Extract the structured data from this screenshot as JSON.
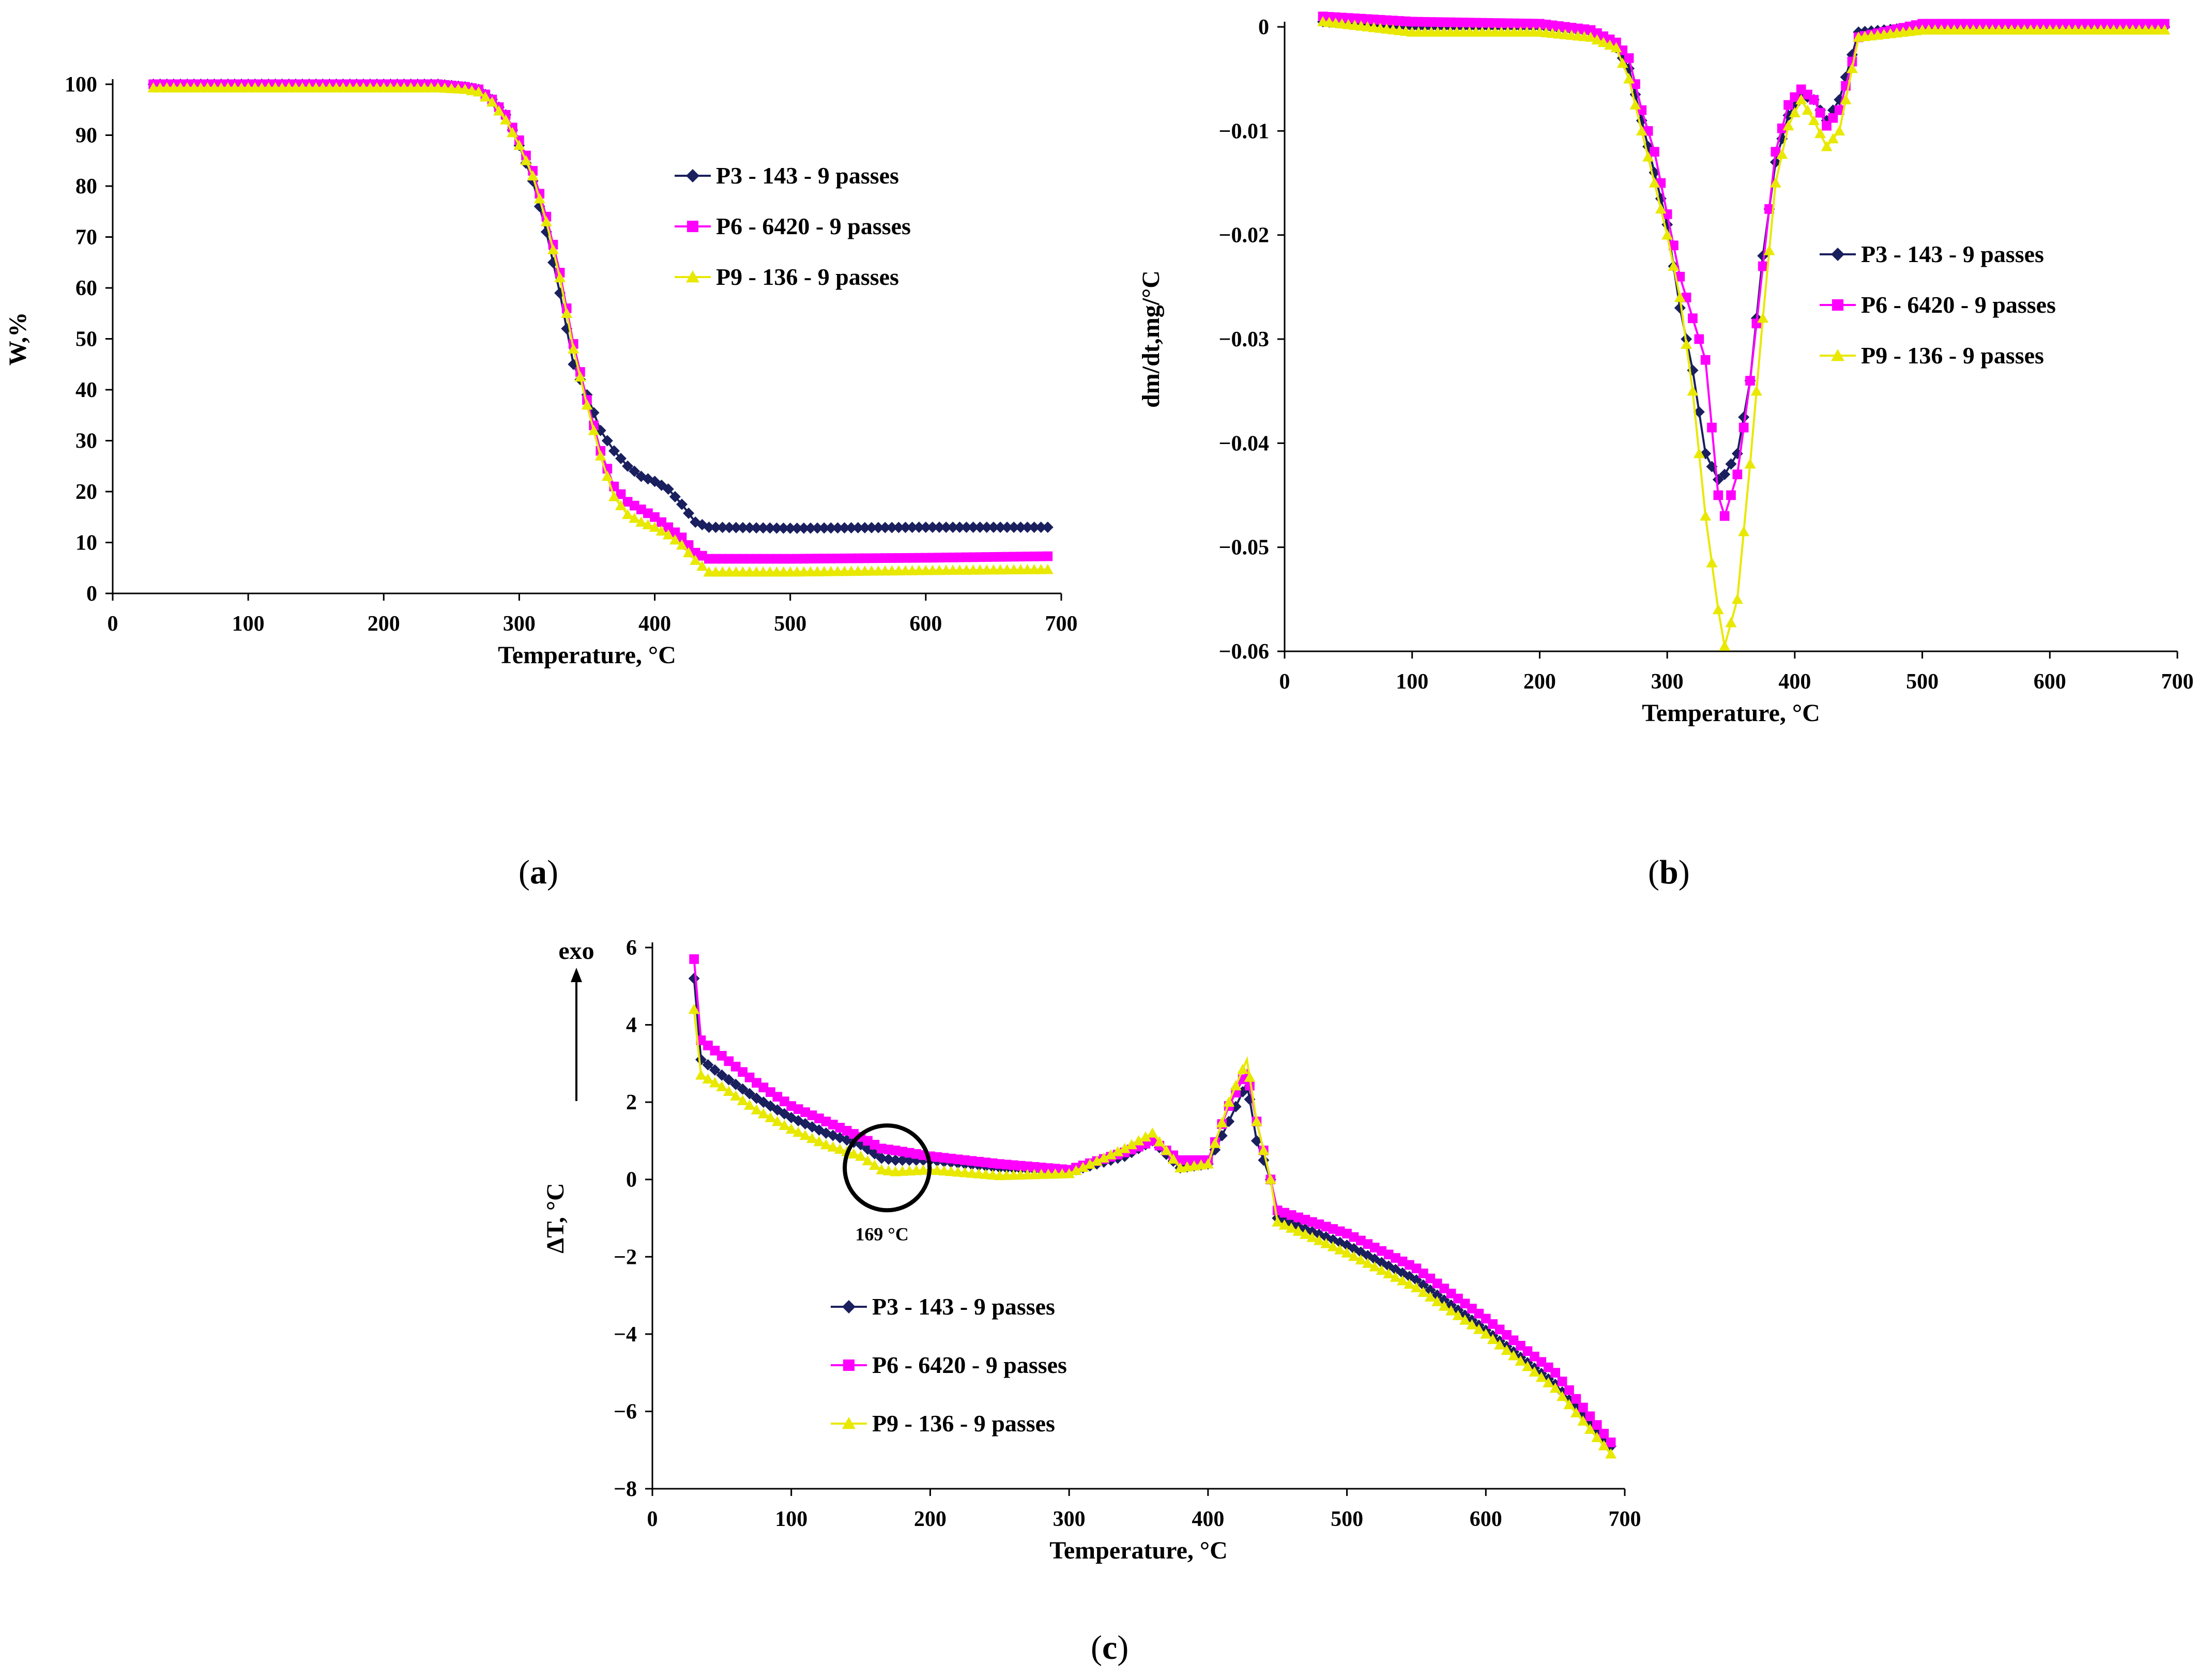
{
  "figure": {
    "captions": [
      {
        "open": "(",
        "letter": "a",
        "close": ")"
      },
      {
        "open": "(",
        "letter": "b",
        "close": ")"
      },
      {
        "open": "(",
        "letter": "c",
        "close": ")"
      }
    ]
  },
  "colors": {
    "P3": "#1a1f5e",
    "P6": "#ff00ff",
    "P9": "#ffff00"
  },
  "chart_data": [
    {
      "type": "line",
      "panel": "a",
      "title": "",
      "xlabel": "Temperature, °C",
      "ylabel": "W,%",
      "xlim": [
        0,
        700
      ],
      "ylim": [
        0,
        100
      ],
      "xticks": [
        0,
        100,
        200,
        300,
        400,
        500,
        600,
        700
      ],
      "yticks": [
        0,
        10,
        20,
        30,
        40,
        50,
        60,
        70,
        80,
        90,
        100
      ],
      "ytick_labels": [
        "0",
        "10",
        "20",
        "30",
        "40",
        "50",
        "60",
        "70",
        "80",
        "90",
        "100"
      ],
      "legend_position": "upper-right",
      "series": [
        {
          "name": "P3 - 143 - 9 passes",
          "marker": "diamond",
          "x": [
            30,
            100,
            200,
            240,
            260,
            270,
            280,
            290,
            300,
            310,
            320,
            330,
            340,
            350,
            360,
            370,
            380,
            390,
            400,
            410,
            420,
            430,
            440,
            500,
            600,
            690
          ],
          "y": [
            100,
            100,
            100,
            100,
            99.5,
            99,
            97,
            94,
            88,
            81,
            71,
            59,
            45,
            39,
            32,
            28,
            25,
            23,
            22,
            20.5,
            17.5,
            14,
            13,
            12.8,
            13,
            13
          ]
        },
        {
          "name": "P6 - 6420 - 9 passes",
          "marker": "square",
          "x": [
            30,
            100,
            200,
            240,
            260,
            270,
            280,
            290,
            300,
            310,
            320,
            330,
            340,
            350,
            360,
            370,
            380,
            390,
            400,
            410,
            420,
            430,
            440,
            500,
            600,
            690
          ],
          "y": [
            100,
            100,
            100,
            100,
            99.5,
            99,
            97,
            94,
            89,
            83,
            74,
            63,
            49,
            38,
            28,
            21,
            18,
            16.5,
            15,
            13,
            11,
            8,
            6.8,
            6.8,
            7,
            7.3
          ]
        },
        {
          "name": "P9 - 136 - 9 passes",
          "marker": "triangle",
          "x": [
            30,
            100,
            200,
            240,
            260,
            270,
            280,
            290,
            300,
            310,
            320,
            330,
            340,
            350,
            360,
            370,
            380,
            390,
            400,
            410,
            420,
            430,
            440,
            500,
            600,
            690
          ],
          "y": [
            99.3,
            99.3,
            99.3,
            99.3,
            99,
            98.5,
            96.5,
            93,
            88,
            82,
            73,
            62,
            48,
            37,
            27,
            19,
            15.5,
            14,
            13,
            11.5,
            9.5,
            6.5,
            4.2,
            4.2,
            4.5,
            4.7
          ]
        }
      ]
    },
    {
      "type": "line",
      "panel": "b",
      "title": "",
      "xlabel": "Temperature, °C",
      "ylabel": "dm/dt,mg/°C",
      "xlim": [
        0,
        700
      ],
      "ylim": [
        -0.06,
        0
      ],
      "xticks": [
        0,
        100,
        200,
        300,
        400,
        500,
        600,
        700
      ],
      "yticks": [
        0,
        -0.01,
        -0.02,
        -0.03,
        -0.04,
        -0.05,
        -0.06
      ],
      "ytick_labels": [
        "0",
        "−0.01",
        "−0.02",
        "−0.03",
        "−0.04",
        "−0.05",
        "−0.06"
      ],
      "legend_position": "right",
      "series": [
        {
          "name": "P3 - 143 - 9 passes",
          "marker": "diamond",
          "x": [
            30,
            100,
            200,
            240,
            260,
            270,
            280,
            290,
            300,
            310,
            320,
            330,
            340,
            345,
            355,
            365,
            375,
            385,
            395,
            405,
            415,
            425,
            435,
            450,
            500,
            600,
            690
          ],
          "y": [
            0.0005,
            0,
            0,
            -0.0005,
            -0.002,
            -0.004,
            -0.009,
            -0.014,
            -0.019,
            -0.027,
            -0.033,
            -0.041,
            -0.0435,
            -0.043,
            -0.041,
            -0.034,
            -0.022,
            -0.013,
            -0.0085,
            -0.0065,
            -0.007,
            -0.009,
            -0.007,
            -0.0005,
            0,
            0,
            0
          ]
        },
        {
          "name": "P6 - 6420 - 9 passes",
          "marker": "square",
          "x": [
            30,
            100,
            200,
            240,
            260,
            270,
            280,
            290,
            300,
            310,
            320,
            330,
            340,
            345,
            355,
            365,
            375,
            385,
            395,
            405,
            415,
            425,
            435,
            450,
            500,
            600,
            690
          ],
          "y": [
            0.001,
            0.0005,
            0.0003,
            -0.0003,
            -0.0015,
            -0.003,
            -0.008,
            -0.012,
            -0.018,
            -0.024,
            -0.028,
            -0.032,
            -0.045,
            -0.047,
            -0.043,
            -0.034,
            -0.023,
            -0.012,
            -0.0075,
            -0.006,
            -0.007,
            -0.0095,
            -0.008,
            -0.001,
            0.0003,
            0.0003,
            0.0003
          ]
        },
        {
          "name": "P9 - 136 - 9 passes",
          "marker": "triangle",
          "x": [
            30,
            100,
            200,
            240,
            260,
            270,
            280,
            290,
            300,
            310,
            320,
            330,
            340,
            345,
            355,
            365,
            375,
            385,
            395,
            405,
            415,
            425,
            435,
            450,
            500,
            600,
            690
          ],
          "y": [
            0.0005,
            -0.0005,
            -0.0005,
            -0.001,
            -0.002,
            -0.005,
            -0.01,
            -0.015,
            -0.02,
            -0.026,
            -0.035,
            -0.047,
            -0.056,
            -0.0595,
            -0.055,
            -0.042,
            -0.028,
            -0.015,
            -0.0095,
            -0.007,
            -0.009,
            -0.0115,
            -0.01,
            -0.001,
            -0.0003,
            -0.0003,
            -0.0003
          ]
        }
      ]
    },
    {
      "type": "line",
      "panel": "c",
      "title": "",
      "xlabel": "Temperature, °C",
      "ylabel": "ΔT, °C",
      "xlim": [
        0,
        700
      ],
      "ylim": [
        -8,
        6
      ],
      "xticks": [
        0,
        100,
        200,
        300,
        400,
        500,
        600,
        700
      ],
      "yticks": [
        6,
        4,
        2,
        0,
        -2,
        -4,
        -6,
        -8
      ],
      "ytick_labels": [
        "6",
        "4",
        "2",
        "0",
        "−2",
        "−4",
        "−6",
        "−8"
      ],
      "legend_position": "lower-left",
      "annotations": [
        {
          "text": "169 °C",
          "x": 169,
          "y": 0.3
        },
        {
          "text": "exo"
        }
      ],
      "series": [
        {
          "name": "P3 - 143 - 9 passes",
          "marker": "diamond",
          "x": [
            30,
            35,
            50,
            75,
            100,
            125,
            150,
            165,
            175,
            200,
            250,
            300,
            340,
            360,
            380,
            400,
            415,
            428,
            435,
            445,
            450,
            500,
            550,
            600,
            650,
            690
          ],
          "y": [
            5.2,
            3.1,
            2.7,
            2.1,
            1.6,
            1.2,
            0.9,
            0.55,
            0.5,
            0.5,
            0.3,
            0.2,
            0.6,
            1.0,
            0.3,
            0.4,
            1.5,
            2.5,
            1.0,
            0.0,
            -1.0,
            -1.7,
            -2.6,
            -3.9,
            -5.3,
            -6.9
          ]
        },
        {
          "name": "P6 - 6420 - 9 passes",
          "marker": "square",
          "x": [
            30,
            35,
            50,
            75,
            100,
            125,
            150,
            165,
            175,
            200,
            250,
            300,
            340,
            360,
            380,
            400,
            415,
            428,
            435,
            445,
            450,
            500,
            550,
            600,
            650,
            690
          ],
          "y": [
            5.7,
            3.6,
            3.2,
            2.5,
            1.9,
            1.5,
            1.1,
            0.8,
            0.75,
            0.6,
            0.4,
            0.25,
            0.7,
            1.0,
            0.5,
            0.5,
            1.9,
            2.8,
            1.5,
            0.0,
            -0.8,
            -1.4,
            -2.3,
            -3.6,
            -5.0,
            -6.8
          ]
        },
        {
          "name": "P9 - 136 - 9 passes",
          "marker": "triangle",
          "x": [
            30,
            35,
            50,
            75,
            100,
            125,
            150,
            165,
            175,
            200,
            250,
            300,
            340,
            360,
            380,
            400,
            415,
            428,
            435,
            445,
            450,
            500,
            550,
            600,
            650,
            690
          ],
          "y": [
            4.4,
            2.7,
            2.4,
            1.8,
            1.3,
            0.9,
            0.6,
            0.25,
            0.2,
            0.25,
            0.1,
            0.15,
            0.8,
            1.2,
            0.3,
            0.4,
            2.0,
            3.1,
            1.5,
            0.0,
            -1.1,
            -1.9,
            -2.8,
            -4.0,
            -5.4,
            -7.1
          ]
        }
      ]
    }
  ]
}
